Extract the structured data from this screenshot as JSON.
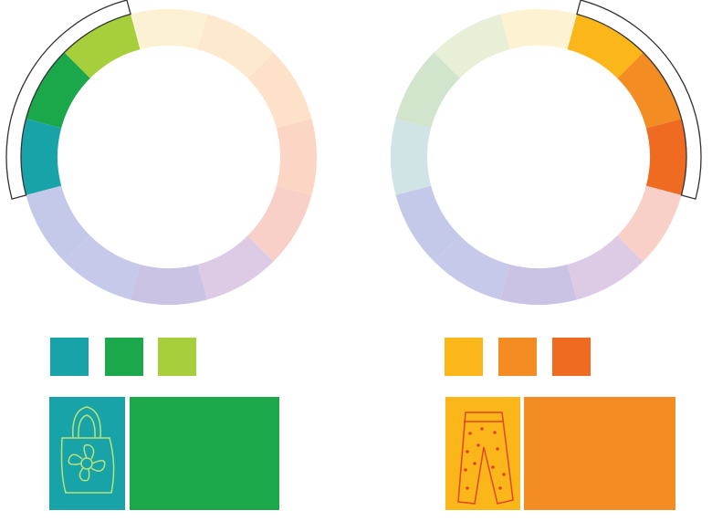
{
  "wheels": [
    {
      "segments": [
        "#fbd6c4",
        "#fde1c9",
        "#fde9cd",
        "#fdf1d3",
        "#a7cf3b",
        "#1ba84b",
        "#17a3a7",
        "#c5c9e9",
        "#c6c9e9",
        "#cbc3e4",
        "#ddcbe6",
        "#f8d0c8"
      ],
      "swatches": [
        "#17a3a7",
        "#1ba84b",
        "#a7cf3b"
      ],
      "panels": [
        "#17a3a7",
        "#1ba84b"
      ]
    },
    {
      "segments": [
        "#ef6b22",
        "#f48c24",
        "#fbb61a",
        "#fdf3d3",
        "#e7f0d6",
        "#d1e5cd",
        "#d0e3e5",
        "#c5c9e9",
        "#c6c9e9",
        "#cbc3e4",
        "#ddcbe6",
        "#f9d0c7"
      ],
      "swatches": [
        "#fbb61a",
        "#f48c24",
        "#ef6b22"
      ],
      "panels": [
        "#fbb61a",
        "#f48c24"
      ]
    }
  ]
}
